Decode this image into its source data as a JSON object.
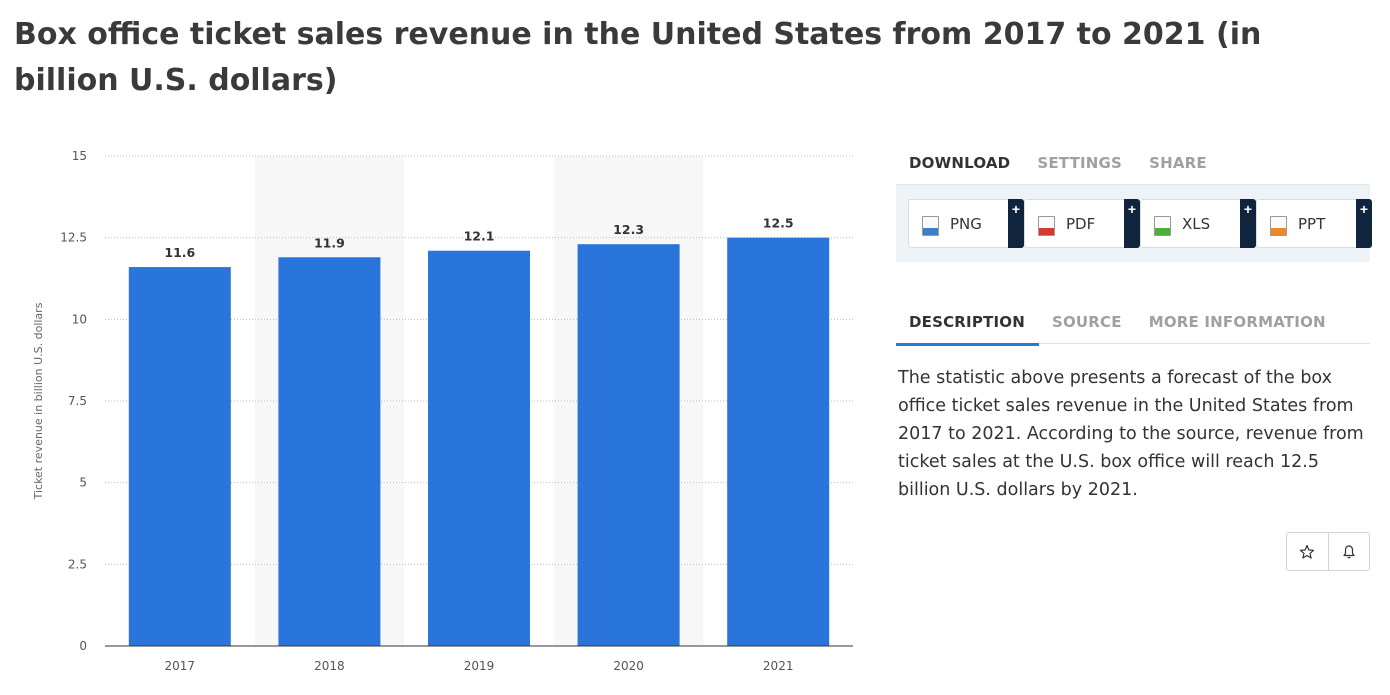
{
  "title": "Box office ticket sales revenue in the United States from 2017 to 2021 (in billion U.S. dollars)",
  "chart_data": {
    "type": "bar",
    "categories": [
      "2017",
      "2018",
      "2019",
      "2020",
      "2021"
    ],
    "values": [
      11.6,
      11.9,
      12.1,
      12.3,
      12.5
    ],
    "data_labels": [
      "11.6",
      "11.9",
      "12.1",
      "12.3",
      "12.5"
    ],
    "ylabel": "Ticket revenue in billion U.S. dollars",
    "ylim": [
      0,
      15
    ],
    "yticks": [
      0,
      2.5,
      5,
      7.5,
      10,
      12.5,
      15
    ],
    "ytick_labels": [
      "0",
      "2.5",
      "5",
      "7.5",
      "10",
      "12.5",
      "15"
    ],
    "bar_color": "#2a75db",
    "grid": true,
    "alternate_band_color": "#f7f7f7"
  },
  "download": {
    "tabs": [
      "DOWNLOAD",
      "SETTINGS",
      "SHARE"
    ],
    "buttons": [
      {
        "label": "PNG",
        "icon": "png-file-icon",
        "color": "#3f7fc8"
      },
      {
        "label": "PDF",
        "icon": "pdf-file-icon",
        "color": "#d43a2f"
      },
      {
        "label": "XLS",
        "icon": "xls-file-icon",
        "color": "#4caf3a"
      },
      {
        "label": "PPT",
        "icon": "ppt-file-icon",
        "color": "#e8892b"
      }
    ],
    "plus": "+"
  },
  "description": {
    "tabs": [
      "DESCRIPTION",
      "SOURCE",
      "MORE INFORMATION"
    ],
    "text": "The statistic above presents a forecast of the box office ticket sales revenue in the United States from 2017 to 2021. According to the source, revenue from ticket sales at the U.S. box office will reach 12.5 billion U.S. dollars by 2021."
  },
  "actions": {
    "icons": [
      "star-icon",
      "bell-icon"
    ]
  },
  "colors": {
    "accent": "#2a7ad7",
    "download_bg": "#eef3f8",
    "plus_bg": "#10243d"
  }
}
